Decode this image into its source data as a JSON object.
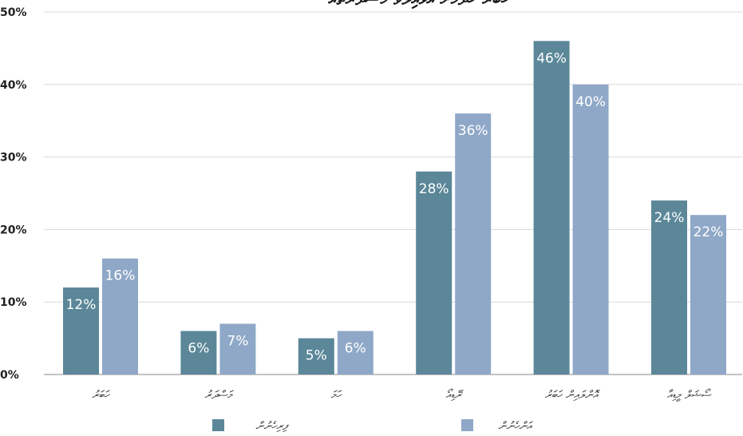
{
  "chart_data": {
    "type": "bar",
    "title": "ޚަބަރު ހޯދުމަށް އަޅައިލެވޭ މަސްދަރުތައް",
    "categories": [
      "ހަބަރު",
      "މަސްދަރު",
      "ހަމަ",
      "ރޭޑިއޯ",
      "އޮންލައިން ހަބަރު",
      "ސޯޝަލް މީޑިއާ"
    ],
    "series": [
      {
        "name": "ފިރިހެނުން",
        "values": [
          12,
          6,
          5,
          28,
          46,
          24
        ],
        "labels": [
          "12%",
          "6%",
          "5%",
          "28%",
          "46%",
          "24%"
        ],
        "color": "#5b8799"
      },
      {
        "name": "އަންހެނުން",
        "values": [
          16,
          7,
          6,
          36,
          40,
          22
        ],
        "labels": [
          "16%",
          "7%",
          "6%",
          "36%",
          "40%",
          "22%"
        ],
        "color": "#8fa8c8"
      }
    ],
    "yticks": [
      "0%",
      "10%",
      "20%",
      "30%",
      "40%",
      "50%"
    ],
    "ylim": [
      0,
      50
    ],
    "grid": true,
    "legend_placement": "bottom",
    "xlabel": "",
    "ylabel": ""
  }
}
